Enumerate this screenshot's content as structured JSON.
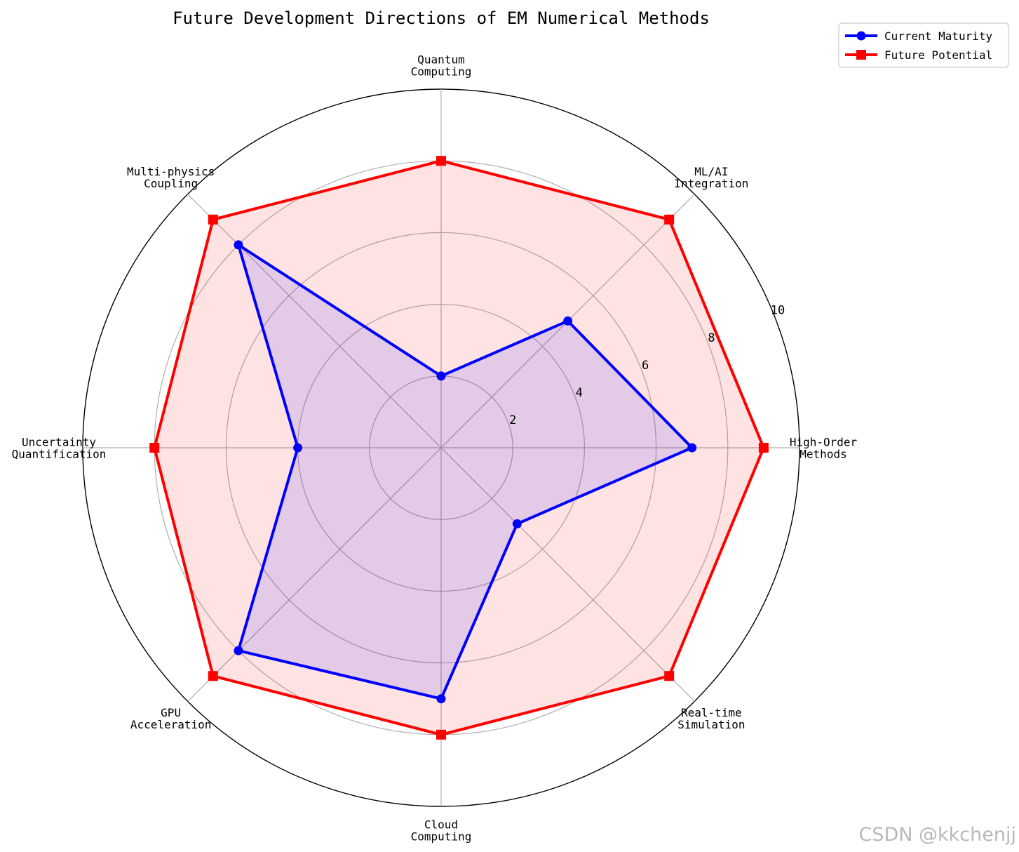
{
  "chart_data": {
    "type": "radar",
    "title": "Future Development Directions of EM Numerical Methods",
    "categories": [
      [
        "High-Order",
        "Methods"
      ],
      [
        "ML/AI",
        "Integration"
      ],
      [
        "Quantum",
        "Computing"
      ],
      [
        "Multi-physics",
        "Coupling"
      ],
      [
        "Uncertainty",
        "Quantification"
      ],
      [
        "GPU",
        "Acceleration"
      ],
      [
        "Cloud",
        "Computing"
      ],
      [
        "Real-time",
        "Simulation"
      ]
    ],
    "rlim": [
      0,
      10
    ],
    "rticks": [
      2,
      4,
      6,
      8,
      10
    ],
    "rtick_labels": [
      "2",
      "4",
      "6",
      "8",
      "10"
    ],
    "grid": true,
    "legend_position": "top-right",
    "series": [
      {
        "name": "Current Maturity",
        "values": [
          7,
          5,
          2,
          8,
          4,
          8,
          7,
          3
        ],
        "color": "#0000ff",
        "fill": "#0000ff",
        "marker": "circle"
      },
      {
        "name": "Future Potential",
        "values": [
          9,
          9,
          8,
          9,
          8,
          9,
          8,
          9
        ],
        "color": "#ff0000",
        "fill": "#ff0000",
        "marker": "square"
      }
    ]
  },
  "watermark": "CSDN @kkchenjj"
}
